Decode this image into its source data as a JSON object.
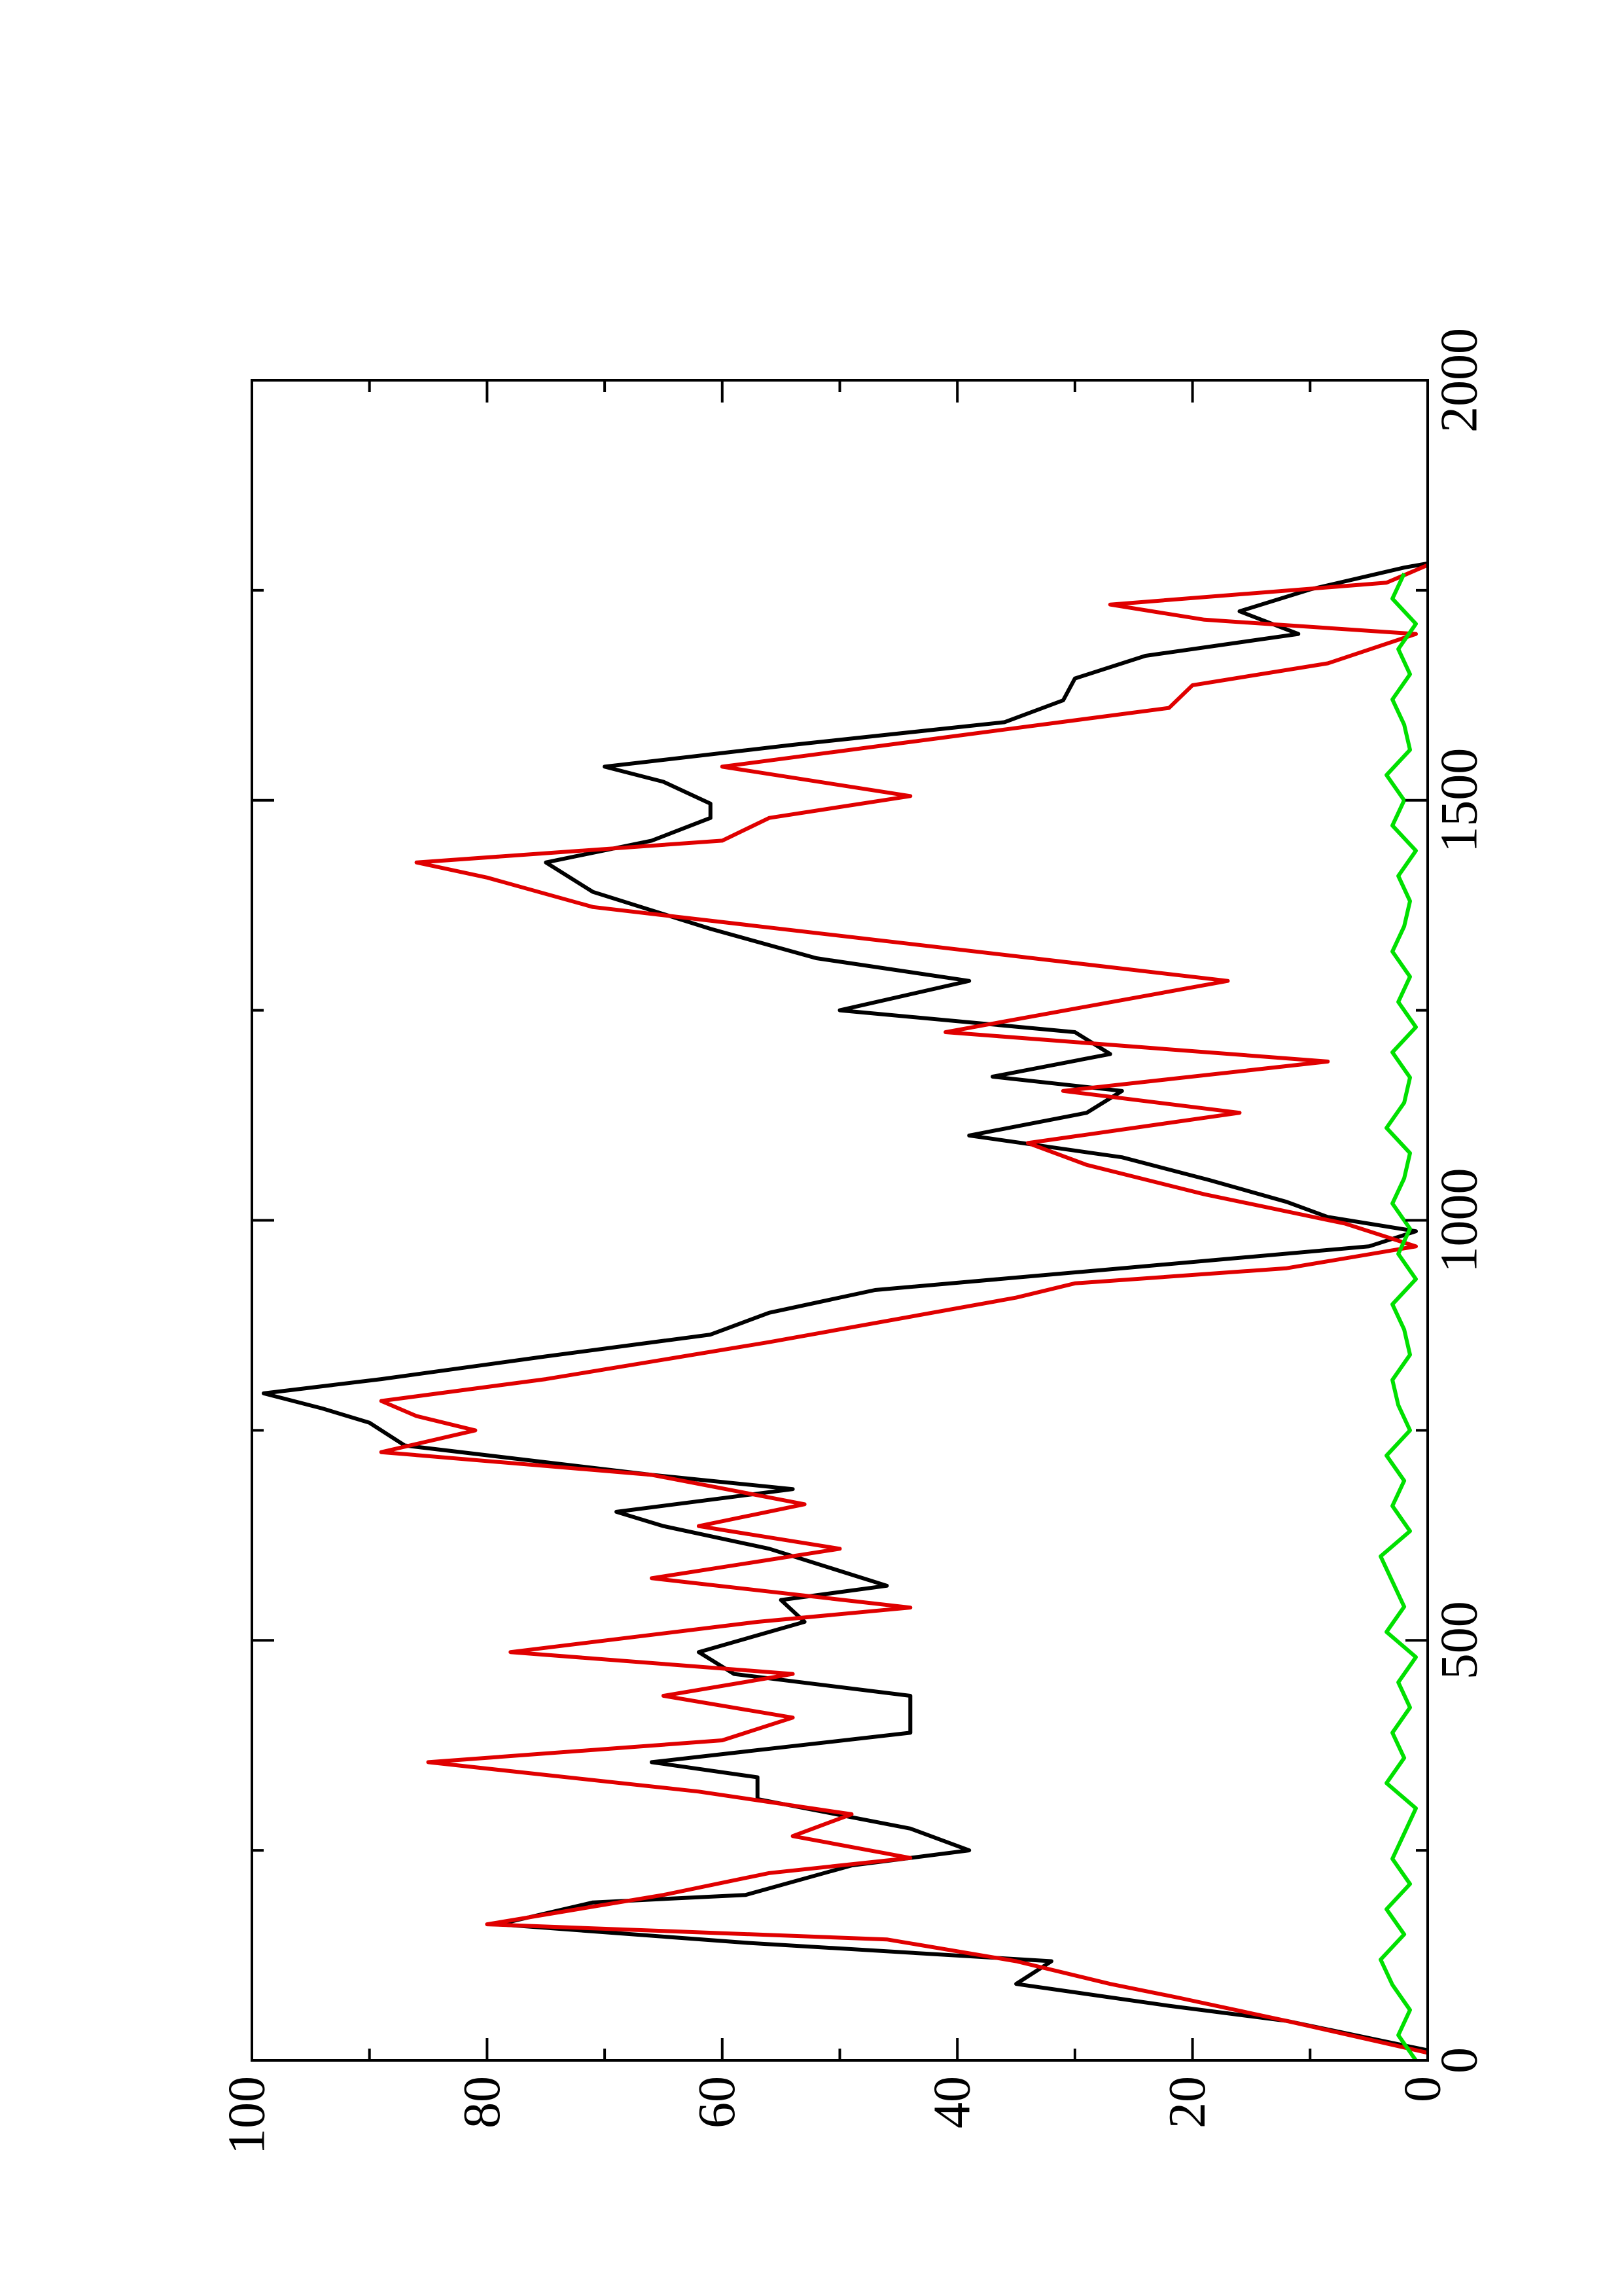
{
  "chart_data": {
    "type": "line",
    "xlim": [
      0,
      2000
    ],
    "xticks": [
      0,
      500,
      1000,
      1500,
      2000
    ],
    "xminorticks": [
      250,
      750,
      1250,
      1750
    ],
    "ylim": [
      0,
      100
    ],
    "yticks": [
      0,
      20,
      40,
      60,
      80,
      100
    ],
    "yminorticks": [
      10,
      30,
      50,
      70,
      90
    ],
    "series": [
      {
        "color": "#000000",
        "x": [
          12,
          47,
          65,
          91,
          118,
          140,
          162,
          188,
          197,
          232,
          250,
          276,
          311,
          337,
          355,
          390,
          434,
          460,
          486,
          522,
          548,
          565,
          609,
          636,
          653,
          680,
          697,
          732,
          759,
          776,
          794,
          811,
          838,
          864,
          890,
          917,
          943,
          969,
          987,
          1004,
          1022,
          1048,
          1075,
          1101,
          1128,
          1154,
          1171,
          1198,
          1224,
          1250,
          1285,
          1312,
          1347,
          1391,
          1426,
          1452,
          1479,
          1496,
          1522,
          1540,
          1566,
          1593,
          1619,
          1645,
          1672,
          1698,
          1725,
          1751,
          1777,
          1782
        ],
        "values": [
          0,
          12,
          22,
          35,
          32,
          58,
          79,
          71,
          58,
          49,
          39,
          44,
          57,
          57,
          66,
          44,
          44,
          59,
          62,
          53,
          55,
          46,
          56,
          65,
          69,
          54,
          66,
          87,
          90,
          94,
          99,
          89,
          75,
          61,
          56,
          47,
          26,
          5,
          1,
          8.5,
          12,
          18.6,
          26,
          39,
          29,
          26,
          37,
          27,
          30,
          50,
          39,
          52,
          61,
          71,
          75,
          66,
          61,
          61,
          65,
          70,
          54,
          36,
          31,
          30,
          24,
          11,
          16,
          10,
          2,
          0
        ]
      },
      {
        "color": "#e00000",
        "x": [
          9,
          47,
          74,
          91,
          118,
          144,
          162,
          197,
          223,
          241,
          267,
          293,
          320,
          355,
          381,
          408,
          434,
          460,
          486,
          522,
          539,
          574,
          609,
          636,
          662,
          697,
          724,
          750,
          767,
          785,
          811,
          855,
          908,
          925,
          943,
          969,
          996,
          1031,
          1066,
          1092,
          1128,
          1154,
          1189,
          1224,
          1285,
          1329,
          1373,
          1408,
          1426,
          1452,
          1479,
          1505,
          1540,
          1575,
          1610,
          1637,
          1663,
          1698,
          1715,
          1733,
          1759,
          1780
        ],
        "values": [
          0,
          12,
          21,
          27,
          35,
          46,
          80,
          65,
          56,
          44,
          54,
          49,
          62,
          85,
          60,
          54,
          65,
          54,
          78,
          57,
          44,
          66,
          50,
          62,
          53,
          66,
          89,
          81,
          86,
          89,
          75,
          56,
          35,
          30,
          12,
          1,
          7,
          19,
          29,
          34,
          16,
          31,
          8.5,
          41,
          17,
          44,
          71,
          80,
          86,
          60,
          56,
          44,
          60,
          41,
          22,
          20,
          8.5,
          1,
          19,
          27,
          3.5,
          0
        ]
      },
      {
        "color": "#00e000",
        "x": [
          0,
          30,
          60,
          90,
          120,
          150,
          180,
          210,
          240,
          270,
          300,
          330,
          360,
          390,
          420,
          450,
          480,
          510,
          540,
          570,
          600,
          630,
          660,
          690,
          720,
          750,
          780,
          810,
          840,
          870,
          900,
          930,
          960,
          990,
          1020,
          1050,
          1080,
          1110,
          1140,
          1170,
          1200,
          1230,
          1260,
          1290,
          1320,
          1350,
          1380,
          1410,
          1440,
          1470,
          1500,
          1530,
          1560,
          1590,
          1620,
          1650,
          1680,
          1710,
          1740,
          1770
        ],
        "values": [
          1,
          2.5,
          1.5,
          3,
          4,
          2,
          3.5,
          1.5,
          3,
          2,
          1,
          3.5,
          2,
          3,
          1.5,
          2.5,
          1,
          3.5,
          2,
          3,
          4,
          1.5,
          3,
          2,
          3.5,
          1.5,
          2.5,
          3,
          1.5,
          2,
          3,
          1,
          2.5,
          1.5,
          3,
          2,
          1.5,
          3.5,
          2,
          1.5,
          3,
          1,
          2.5,
          1.5,
          3,
          2,
          1.5,
          2.5,
          1,
          3,
          2,
          3.5,
          1.5,
          2,
          3,
          1.5,
          2.5,
          1,
          3,
          2
        ]
      }
    ]
  }
}
